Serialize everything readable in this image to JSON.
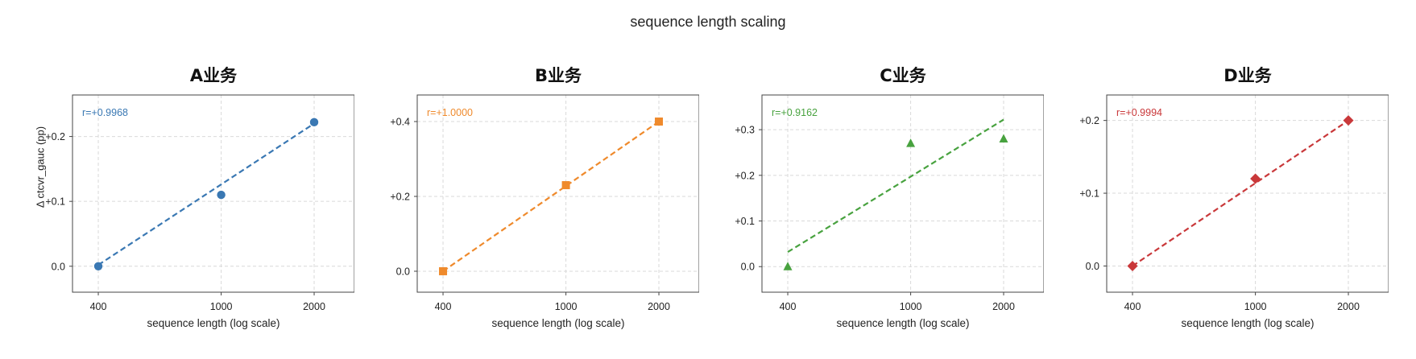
{
  "suptitle": "sequence length scaling",
  "xlabel": "sequence length (log scale)",
  "ylabel": "Δ ctcvr_gauc (pp)",
  "chart_data": [
    {
      "type": "scatter",
      "title": "A业务",
      "xscale": "log",
      "x": [
        400,
        1000,
        2000
      ],
      "y": [
        0.0,
        0.11,
        0.222
      ],
      "fit_line": [
        [
          400,
          0.002
        ],
        [
          2000,
          0.22
        ]
      ],
      "marker": "circle",
      "color": "#3a78b3",
      "annotation": "r=+0.9968",
      "xticks": [
        "400",
        "1000",
        "2000"
      ],
      "yticks": [
        0.0,
        0.1,
        0.2
      ],
      "ytick_labels": [
        "0.0",
        "+0.1",
        "+0.2"
      ],
      "xlim": [
        330,
        2700
      ],
      "ylim": [
        -0.04,
        0.264
      ],
      "grid": true
    },
    {
      "type": "scatter",
      "title": "B业务",
      "xscale": "log",
      "x": [
        400,
        1000,
        2000
      ],
      "y": [
        0.0,
        0.23,
        0.4
      ],
      "fit_line": [
        [
          400,
          0.0
        ],
        [
          2000,
          0.4
        ]
      ],
      "marker": "square",
      "color": "#ef8a2c",
      "annotation": "r=+1.0000",
      "xticks": [
        "400",
        "1000",
        "2000"
      ],
      "yticks": [
        0.0,
        0.2,
        0.4
      ],
      "ytick_labels": [
        "0.0",
        "+0.2",
        "+0.4"
      ],
      "xlim": [
        330,
        2700
      ],
      "ylim": [
        -0.056,
        0.471
      ],
      "grid": true
    },
    {
      "type": "scatter",
      "title": "C业务",
      "xscale": "log",
      "x": [
        400,
        1000,
        2000
      ],
      "y": [
        0.0,
        0.27,
        0.28
      ],
      "fit_line": [
        [
          400,
          0.032
        ],
        [
          2000,
          0.322
        ]
      ],
      "marker": "triangle",
      "color": "#48a23f",
      "annotation": "r=+0.9162",
      "xticks": [
        "400",
        "1000",
        "2000"
      ],
      "yticks": [
        0.0,
        0.1,
        0.2,
        0.3
      ],
      "ytick_labels": [
        "0.0",
        "+0.1",
        "+0.2",
        "+0.3"
      ],
      "xlim": [
        330,
        2700
      ],
      "ylim": [
        -0.056,
        0.376
      ],
      "grid": true
    },
    {
      "type": "scatter",
      "title": "D业务",
      "xscale": "log",
      "x": [
        400,
        1000,
        2000
      ],
      "y": [
        0.0,
        0.12,
        0.2
      ],
      "fit_line": [
        [
          400,
          0.0
        ],
        [
          2000,
          0.2
        ]
      ],
      "marker": "diamond",
      "color": "#c9383a",
      "annotation": "r=+0.9994",
      "xticks": [
        "400",
        "1000",
        "2000"
      ],
      "yticks": [
        0.0,
        0.1,
        0.2
      ],
      "ytick_labels": [
        "0.0",
        "+0.1",
        "+0.2"
      ],
      "xlim": [
        330,
        2700
      ],
      "ylim": [
        -0.036,
        0.235
      ],
      "grid": true
    }
  ]
}
